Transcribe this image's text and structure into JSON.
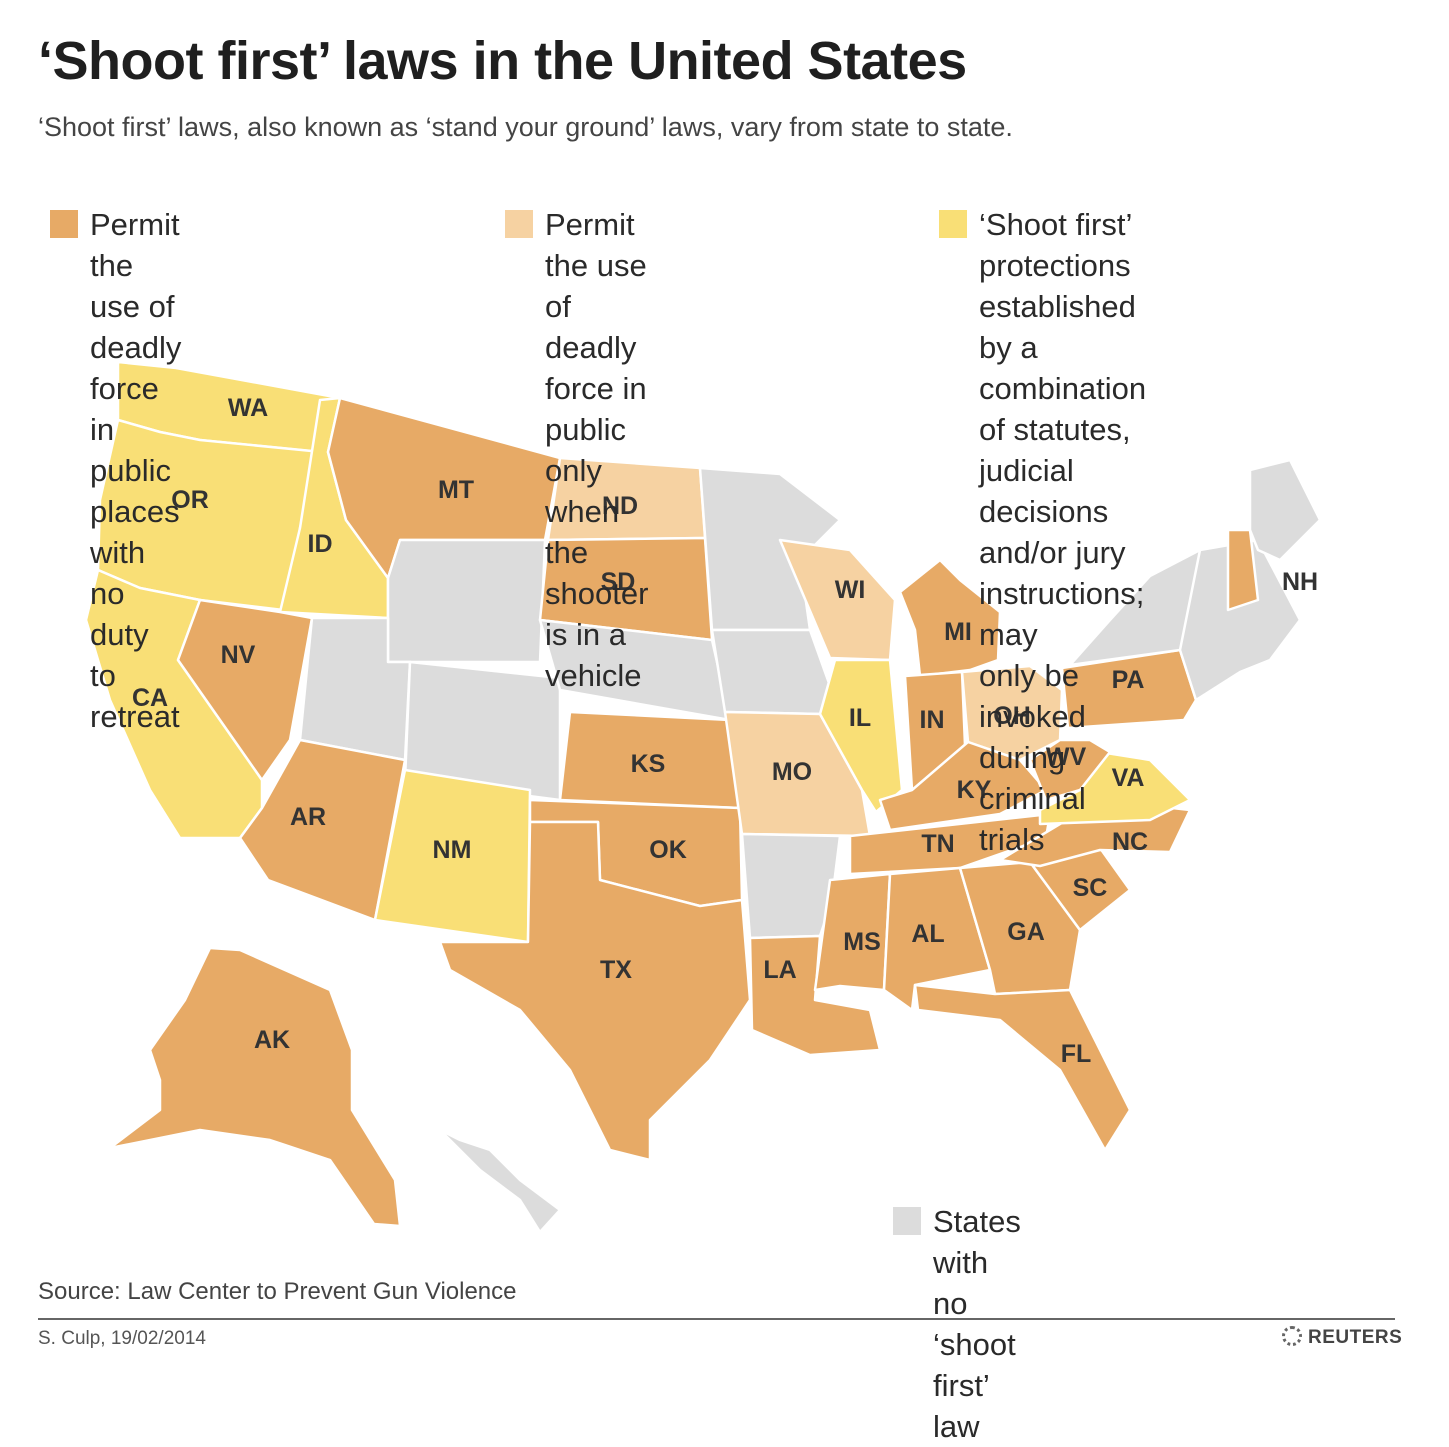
{
  "title": "‘Shoot first’ laws in the United States",
  "subtitle": "‘Shoot first’ laws, also known as ‘stand your ground’ laws, vary from state to state.",
  "colors": {
    "public_no_retreat": "#e7aa66",
    "vehicle_only": "#f6d2a2",
    "combination": "#f9df76",
    "none": "#dcdcdc"
  },
  "legend": {
    "public_no_retreat": "Permit the use of deadly\nforce in public places with\nno duty to retreat",
    "vehicle_only": "Permit the use of deadly\nforce in public only when\nthe shooter is in a vehicle",
    "combination": "‘Shoot first’ protections\nestablished by a combination\nof statutes, judicial decisions\nand/or jury instructions; may\nonly be invoked during\ncriminal trials",
    "none": "States with no ‘shoot first’ law"
  },
  "states": {
    "WA": "combination",
    "OR": "combination",
    "CA": "combination",
    "ID": "combination",
    "NV": "public_no_retreat",
    "MT": "public_no_retreat",
    "WY": "none",
    "UT": "none",
    "CO": "none",
    "AR": "public_no_retreat",
    "NM": "combination",
    "ND": "vehicle_only",
    "SD": "public_no_retreat",
    "NE": "none",
    "KS": "public_no_retreat",
    "OK": "public_no_retreat",
    "TX": "public_no_retreat",
    "MN": "none",
    "IA": "none",
    "MO": "vehicle_only",
    "AR_STATE": "none",
    "LA": "public_no_retreat",
    "WI": "vehicle_only",
    "IL": "combination",
    "MI": "public_no_retreat",
    "IN": "public_no_retreat",
    "OH": "vehicle_only",
    "KY": "public_no_retreat",
    "TN": "public_no_retreat",
    "MS": "public_no_retreat",
    "AL": "public_no_retreat",
    "GA": "public_no_retreat",
    "FL": "public_no_retreat",
    "SC": "public_no_retreat",
    "NC": "public_no_retreat",
    "VA": "combination",
    "WV": "public_no_retreat",
    "PA": "public_no_retreat",
    "NY": "none",
    "NE_REGION": "none",
    "NH": "public_no_retreat",
    "ME": "none",
    "AK": "public_no_retreat",
    "HI": "none"
  },
  "labels": [
    "WA",
    "OR",
    "ID",
    "MT",
    "ND",
    "SD",
    "WI",
    "MI",
    "NH",
    "NV",
    "CA",
    "PA",
    "IL",
    "IN",
    "OH",
    "KS",
    "MO",
    "WV",
    "VA",
    "KY",
    "AR",
    "TN",
    "NC",
    "NM",
    "OK",
    "SC",
    "MS",
    "AL",
    "GA",
    "TX",
    "LA",
    "AK",
    "FL"
  ],
  "source": "Source: Law Center to Prevent Gun Violence",
  "credit": "S. Culp, 19/02/2014",
  "brand": "REUTERS"
}
